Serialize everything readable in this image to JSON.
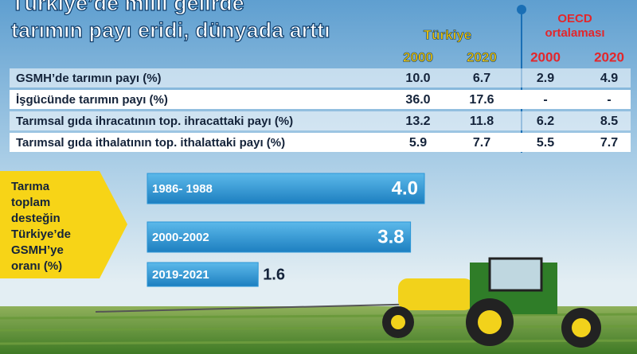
{
  "header": {
    "title": [
      "Türkiye’de milli gelirde",
      "tarımın payı eridi, dünyada arttı"
    ]
  },
  "table": {
    "turkiye_label": "Türkiye",
    "oecd_label": [
      "OECD",
      "ortalaması"
    ],
    "years": [
      "2000",
      "2020",
      "2000",
      "2020"
    ],
    "rows": [
      [
        "GSMH’de tarımın payı (%)",
        "10.0",
        "6.7",
        "2.9",
        "4.9"
      ],
      [
        "İşgücünde tarımın payı (%)",
        "36.0",
        "17.6",
        "-",
        "-"
      ],
      [
        "Tarımsal gıda ihracatının top. ihracattaki payı (%)",
        "13.2",
        "11.8",
        "6.2",
        "8.5"
      ],
      [
        "Tarımsal gıda ithalatının top. ithalattaki payı (%)",
        "5.9",
        "7.7",
        "5.5",
        "7.7"
      ]
    ]
  },
  "chart_data": {
    "type": "bar",
    "orientation": "horizontal",
    "title": [
      "Tarıma",
      "toplam",
      "desteğin",
      "Türkiye’de",
      "GSMH’ye",
      "oranı   (%)"
    ],
    "categories": [
      "1986- 1988",
      "2000-2002",
      "2019-2021"
    ],
    "values": [
      4.0,
      3.8,
      1.6
    ],
    "value_labels": [
      "4.0",
      "3.8",
      "1.6"
    ],
    "color": "#2b96d6"
  }
}
